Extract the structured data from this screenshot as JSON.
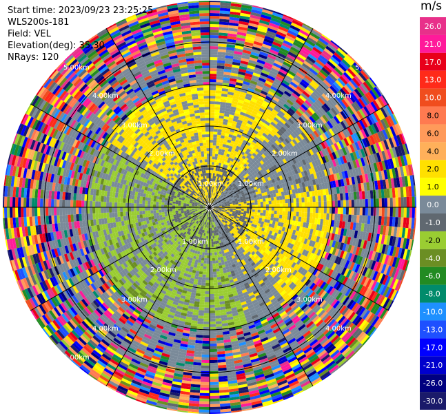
{
  "header": {
    "start_time": "Start time: 2023/09/23 23:25:25",
    "instrument": "WLS200s-181",
    "field": "Field: VEL",
    "elevation": "Elevation(deg): 35.30",
    "nrays": "NRays: 120"
  },
  "chart_data": {
    "type": "ppi",
    "field": "VEL",
    "nrays": 120,
    "elevation_deg": 35.3,
    "range_rings_km": [
      "1.00km",
      "2.00km",
      "3.00km",
      "4.00km",
      "5.00km",
      "6.00km",
      "7.00km"
    ],
    "colorbar": {
      "unit": "m/s",
      "ticks": [
        "26.0",
        "21.0",
        "17.0",
        "13.0",
        "10.0",
        "8.0",
        "6.0",
        "4.0",
        "2.0",
        "1.0",
        "0.0",
        "-1.0",
        "-2.0",
        "-4.0",
        "-6.0",
        "-8.0",
        "-10.0",
        "-13.0",
        "-17.0",
        "-21.0",
        "-26.0",
        "-30.0"
      ],
      "colors": [
        "#e8308a",
        "#ff1a9a",
        "#e8001a",
        "#ff2a1a",
        "#f04d1e",
        "#ff7a50",
        "#ff9a5a",
        "#ffb05a",
        "#ffe000",
        "#ffff00",
        "#7a8a99",
        "#606870",
        "#9acd32",
        "#6b8e23",
        "#228b22",
        "#008b6b",
        "#1e90ff",
        "#1e50ff",
        "#0000ff",
        "#0000cd",
        "#000080",
        "#1a1a6a"
      ]
    }
  }
}
